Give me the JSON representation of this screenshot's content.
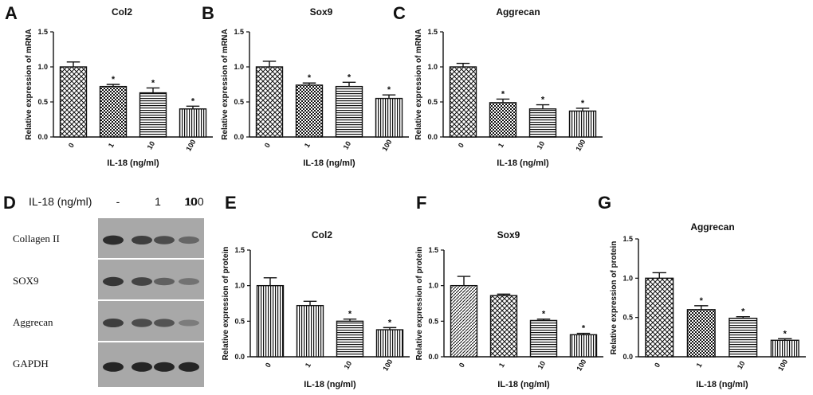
{
  "colors": {
    "ink": "#111111",
    "bar_fill": "#ffffff",
    "blot_bg": "#a8a8a8"
  },
  "chart_data": [
    {
      "panel": "A",
      "type": "bar",
      "title": "Col2",
      "ylabel": "Relative expression of mRNA",
      "xlabel": "IL-18 (ng/ml)",
      "categories": [
        "0",
        "1",
        "10",
        "100"
      ],
      "values": [
        1.0,
        0.72,
        0.63,
        0.4
      ],
      "errors": [
        0.07,
        0.03,
        0.07,
        0.04
      ],
      "significance": [
        "",
        "*",
        "*",
        "*"
      ],
      "patterns": [
        "cross",
        "check",
        "hlines",
        "vlines"
      ],
      "ylim": [
        0,
        1.5
      ],
      "yticks": [
        "0.0",
        "0.5",
        "1.0",
        "1.5"
      ]
    },
    {
      "panel": "B",
      "type": "bar",
      "title": "Sox9",
      "ylabel": "Relative expression of mRNA",
      "xlabel": "IL-18 (ng/ml)",
      "categories": [
        "0",
        "1",
        "10",
        "100"
      ],
      "values": [
        1.0,
        0.74,
        0.72,
        0.55
      ],
      "errors": [
        0.08,
        0.03,
        0.06,
        0.05
      ],
      "significance": [
        "",
        "*",
        "*",
        "*"
      ],
      "patterns": [
        "cross",
        "check",
        "hlines",
        "vlines"
      ],
      "ylim": [
        0,
        1.5
      ],
      "yticks": [
        "0.0",
        "0.5",
        "1.0",
        "1.5"
      ]
    },
    {
      "panel": "C",
      "type": "bar",
      "title": "Aggrecan",
      "ylabel": "Relative expression of mRNA",
      "xlabel": "IL-18 (ng/ml)",
      "categories": [
        "0",
        "1",
        "10",
        "100"
      ],
      "values": [
        1.0,
        0.49,
        0.4,
        0.37
      ],
      "errors": [
        0.05,
        0.05,
        0.06,
        0.04
      ],
      "significance": [
        "",
        "*",
        "*",
        "*"
      ],
      "patterns": [
        "cross",
        "check",
        "hlines",
        "vlines"
      ],
      "ylim": [
        0,
        1.5
      ],
      "yticks": [
        "0.0",
        "0.5",
        "1.0",
        "1.5"
      ]
    },
    {
      "panel": "E",
      "type": "bar",
      "title": "Col2",
      "ylabel": "Relative expression of protein",
      "xlabel": "IL-18 (ng/ml)",
      "categories": [
        "0",
        "1",
        "10",
        "100"
      ],
      "values": [
        1.0,
        0.72,
        0.5,
        0.38
      ],
      "errors": [
        0.11,
        0.06,
        0.03,
        0.03
      ],
      "significance": [
        "",
        "",
        "*",
        "*"
      ],
      "patterns": [
        "vlines",
        "vlines",
        "hlines",
        "vlines"
      ],
      "ylim": [
        0,
        1.5
      ],
      "yticks": [
        "0.0",
        "0.5",
        "1.0",
        "1.5"
      ]
    },
    {
      "panel": "F",
      "type": "bar",
      "title": "Sox9",
      "ylabel": "Relative expression of protein",
      "xlabel": "IL-18 (ng/ml)",
      "categories": [
        "0",
        "1",
        "10",
        "100"
      ],
      "values": [
        1.0,
        0.86,
        0.51,
        0.31
      ],
      "errors": [
        0.13,
        0.02,
        0.02,
        0.02
      ],
      "significance": [
        "",
        "",
        "*",
        "*"
      ],
      "patterns": [
        "diag",
        "cross",
        "hlines",
        "vlines"
      ],
      "ylim": [
        0,
        1.5
      ],
      "yticks": [
        "0.0",
        "0.5",
        "1.0",
        "1.5"
      ]
    },
    {
      "panel": "G",
      "type": "bar",
      "title": "Aggrecan",
      "ylabel": "Relative expression of protein",
      "xlabel": "IL-18 (ng/ml)",
      "categories": [
        "0",
        "1",
        "10",
        "100"
      ],
      "values": [
        1.0,
        0.6,
        0.49,
        0.21
      ],
      "errors": [
        0.07,
        0.05,
        0.02,
        0.02
      ],
      "significance": [
        "",
        "*",
        "*",
        "*"
      ],
      "patterns": [
        "cross",
        "check",
        "hlines",
        "vlines"
      ],
      "ylim": [
        0,
        1.5
      ],
      "yticks": [
        "0.0",
        "0.5",
        "1.0",
        "1.5"
      ]
    }
  ],
  "western_blot": {
    "panel": "D",
    "header_label": "IL-18 (ng/ml)",
    "lanes": [
      "-",
      "1",
      "10",
      "100"
    ],
    "rows": [
      {
        "label": "Collagen II",
        "intensities": [
          0.95,
          0.85,
          0.75,
          0.55
        ]
      },
      {
        "label": "SOX9",
        "intensities": [
          0.9,
          0.8,
          0.6,
          0.45
        ]
      },
      {
        "label": "Aggrecan",
        "intensities": [
          0.85,
          0.75,
          0.7,
          0.35
        ]
      },
      {
        "label": "GAPDH",
        "intensities": [
          1.0,
          1.0,
          1.0,
          1.0
        ]
      }
    ]
  }
}
